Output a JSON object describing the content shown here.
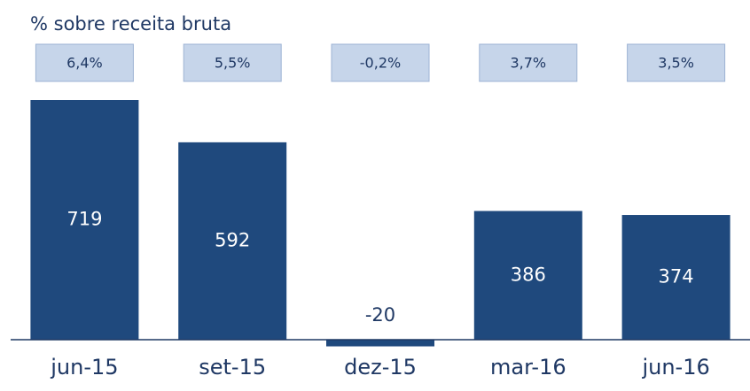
{
  "chart_data": {
    "type": "bar",
    "title": "% sobre receita bruta",
    "categories": [
      "jun-15",
      "set-15",
      "dez-15",
      "mar-16",
      "jun-16"
    ],
    "values": [
      719,
      592,
      -20,
      386,
      374
    ],
    "color": "#1f497d",
    "margin_values": [
      6.4,
      5.5,
      -0.2,
      3.7,
      3.5
    ],
    "margin_labels": [
      "6,4%",
      "5,5%",
      "-0,2%",
      "3,7%",
      "3,5%"
    ]
  }
}
